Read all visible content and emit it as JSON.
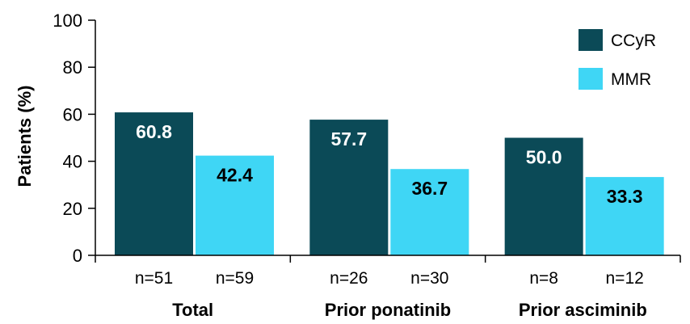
{
  "chart_data": {
    "type": "bar",
    "ylabel": "Patients (%)",
    "ylim": [
      0,
      100
    ],
    "yticks": [
      0,
      20,
      40,
      60,
      80,
      100
    ],
    "grid": false,
    "legend_position": "top-right",
    "groups": [
      {
        "label": "Total",
        "n": [
          "n=51",
          "n=59"
        ]
      },
      {
        "label": "Prior ponatinib",
        "n": [
          "n=26",
          "n=30"
        ]
      },
      {
        "label": "Prior asciminib",
        "n": [
          "n=8",
          "n=12"
        ]
      }
    ],
    "series": [
      {
        "name": "CCyR",
        "color": "#0b4a57",
        "values": [
          60.8,
          57.7,
          50.0
        ],
        "labels": [
          "60.8",
          "57.7",
          "50.0"
        ]
      },
      {
        "name": "MMR",
        "color": "#3fd6f5",
        "values": [
          42.4,
          36.7,
          33.3
        ],
        "labels": [
          "42.4",
          "36.7",
          "33.3"
        ]
      }
    ]
  }
}
